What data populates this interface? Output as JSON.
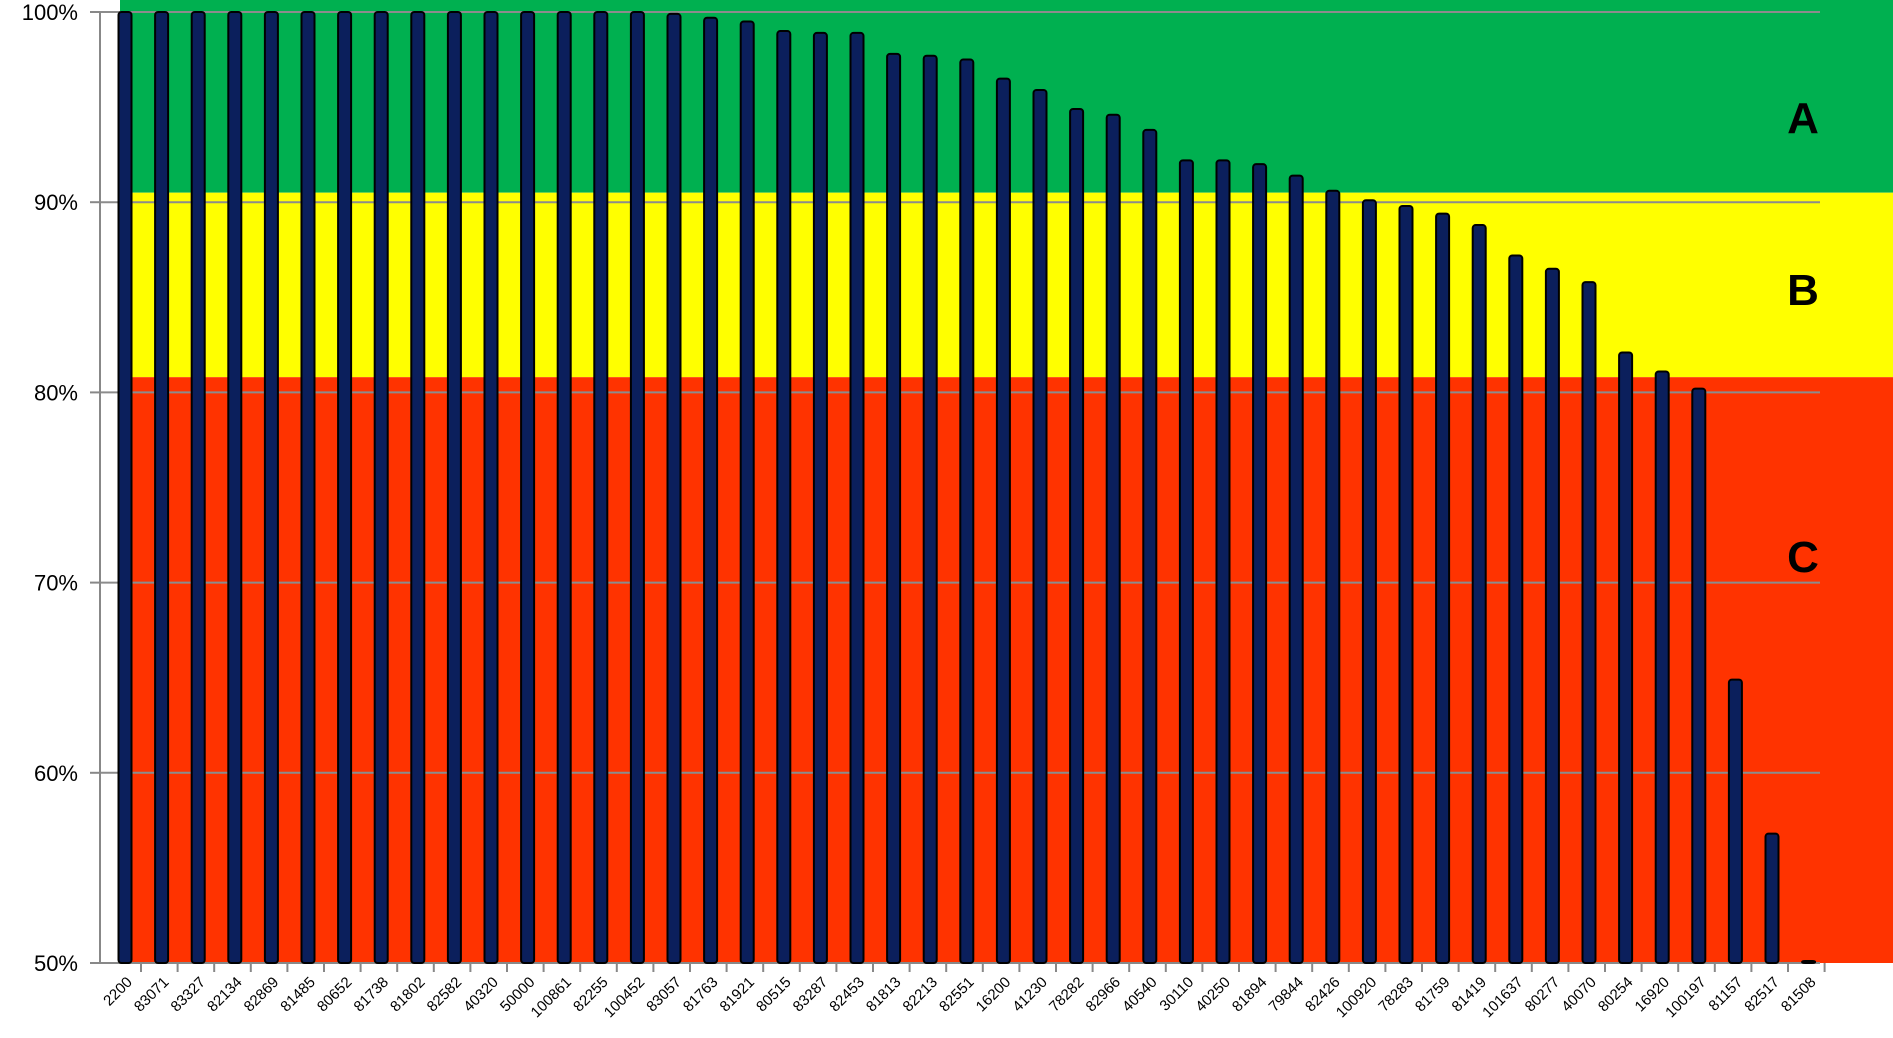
{
  "chart_data": {
    "type": "bar",
    "title": "",
    "xlabel": "",
    "ylabel": "",
    "ylim": [
      50,
      100
    ],
    "yticks": [
      "50%",
      "60%",
      "70%",
      "80%",
      "90%",
      "100%"
    ],
    "ytick_values": [
      50,
      60,
      70,
      80,
      90,
      100
    ],
    "grid": "horizontal",
    "bar_color": "#0b1f5c",
    "zones": [
      {
        "label": "A",
        "from": 90.5,
        "to": 100,
        "color": "#00b050"
      },
      {
        "label": "B",
        "from": 80.8,
        "to": 90.5,
        "color": "#ffff00"
      },
      {
        "label": "C",
        "from": 50,
        "to": 80.8,
        "color": "#ff3300"
      }
    ],
    "categories": [
      "2200",
      "83071",
      "83327",
      "82134",
      "82869",
      "81485",
      "80652",
      "81738",
      "81802",
      "82582",
      "40320",
      "50000",
      "100861",
      "82255",
      "100452",
      "83057",
      "81763",
      "81921",
      "80515",
      "83287",
      "82453",
      "81813",
      "82213",
      "82551",
      "16200",
      "41230",
      "78282",
      "82966",
      "40540",
      "30110",
      "40250",
      "81894",
      "79844",
      "82426",
      "100920",
      "78283",
      "81759",
      "81419",
      "101637",
      "80277",
      "40070",
      "80254",
      "16920",
      "100197",
      "81157",
      "82517",
      "81508"
    ],
    "values": [
      100,
      100,
      100,
      100,
      100,
      100,
      100,
      100,
      100,
      100,
      100,
      100,
      100,
      100,
      100,
      99.9,
      99.7,
      99.5,
      99.0,
      98.9,
      98.9,
      97.8,
      97.7,
      97.5,
      96.5,
      95.9,
      94.9,
      94.6,
      93.8,
      92.2,
      92.2,
      92.0,
      91.4,
      90.6,
      90.1,
      89.8,
      89.4,
      88.8,
      87.2,
      86.5,
      85.8,
      82.1,
      81.1,
      80.2,
      64.9,
      56.8,
      50.0
    ]
  }
}
